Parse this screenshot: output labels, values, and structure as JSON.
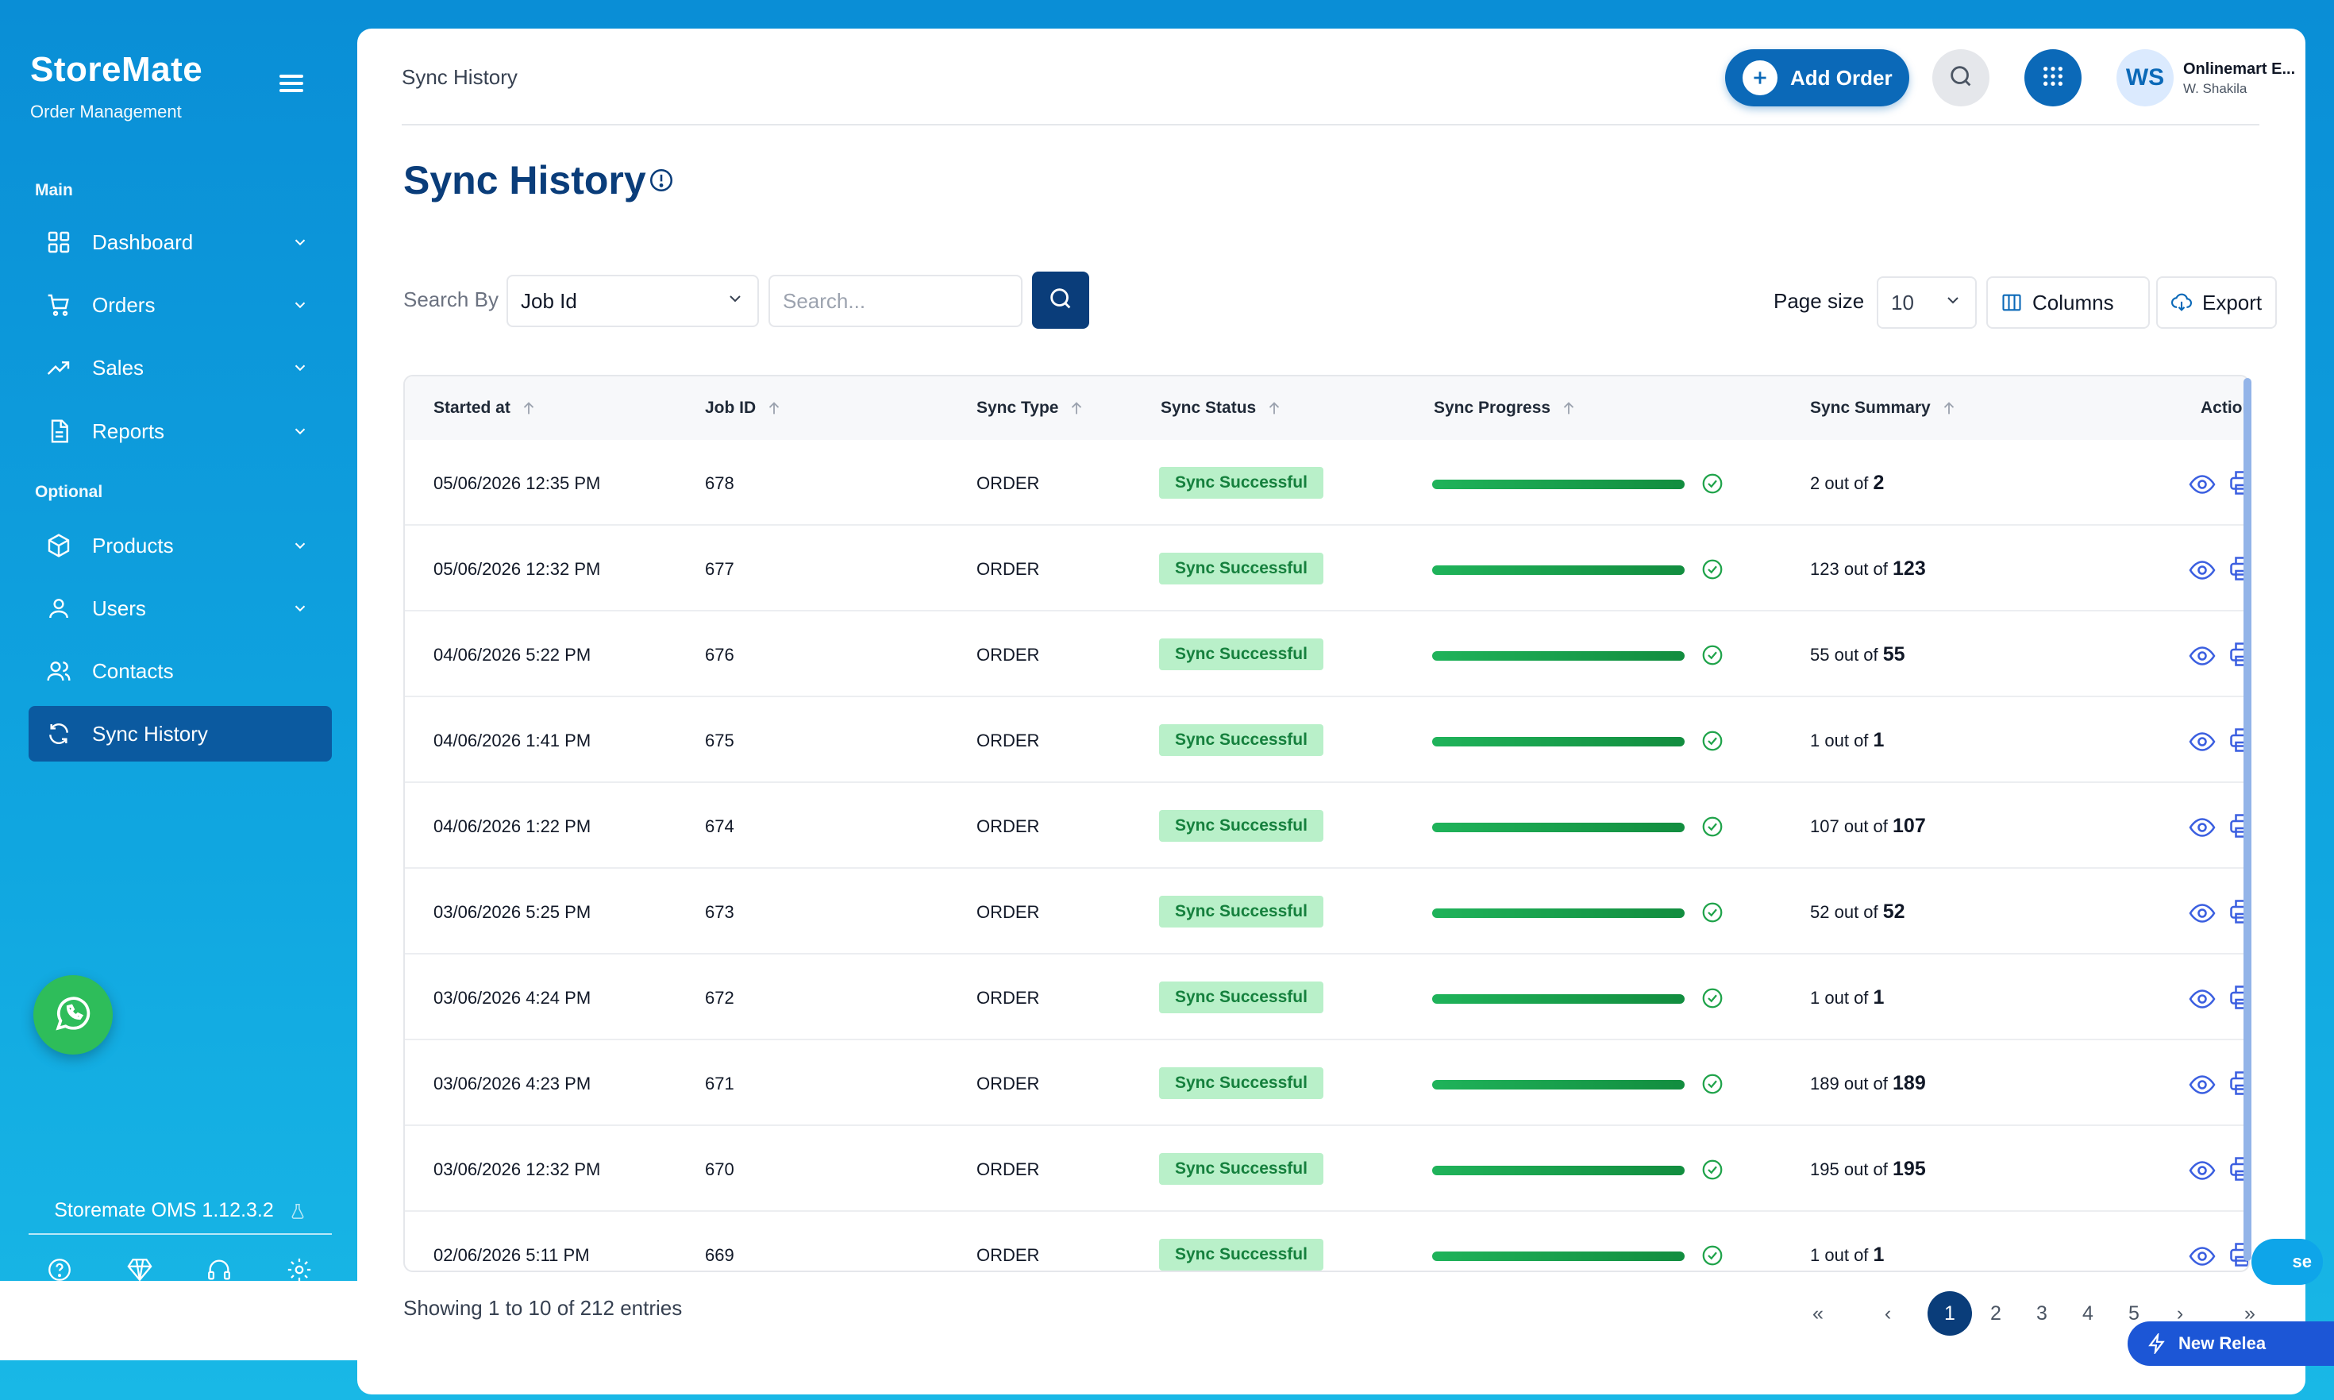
{
  "brand": {
    "name": "StoreMate",
    "subtitle": "Order Management"
  },
  "sidebar": {
    "section_main": "Main",
    "section_optional": "Optional",
    "items": [
      {
        "label": "Dashboard",
        "icon": "grid-icon",
        "has_chevron": true
      },
      {
        "label": "Orders",
        "icon": "cart-icon",
        "has_chevron": true
      },
      {
        "label": "Sales",
        "icon": "trend-up-icon",
        "has_chevron": true
      },
      {
        "label": "Reports",
        "icon": "document-icon",
        "has_chevron": true
      },
      {
        "label": "Products",
        "icon": "box-icon",
        "has_chevron": true
      },
      {
        "label": "Users",
        "icon": "user-icon",
        "has_chevron": true
      },
      {
        "label": "Contacts",
        "icon": "users-icon",
        "has_chevron": false
      },
      {
        "label": "Sync History",
        "icon": "sync-icon",
        "has_chevron": false,
        "active": true
      }
    ],
    "version": "Storemate OMS 1.12.3.2",
    "footer_icons": [
      "help-icon",
      "diamond-icon",
      "headset-icon",
      "settings-icon"
    ]
  },
  "header": {
    "breadcrumb": "Sync History",
    "add_order_label": "Add Order",
    "user_initials": "WS",
    "user_name": "Onlinemart E...",
    "user_sub": "W. Shakila"
  },
  "page": {
    "title": "Sync History",
    "search_by_label": "Search By",
    "search_by_value": "Job Id",
    "search_placeholder": "Search...",
    "page_size_label": "Page size",
    "page_size_value": "10",
    "columns_label": "Columns",
    "export_label": "Export"
  },
  "table": {
    "columns": [
      "Started at",
      "Job ID",
      "Sync Type",
      "Sync Status",
      "Sync Progress",
      "Sync Summary",
      "Action"
    ],
    "rows": [
      {
        "started": "05/06/2026 12:35 PM",
        "job_id": "678",
        "type": "ORDER",
        "status": "Sync Successful",
        "progress": 1.0,
        "done": "2",
        "total": "2"
      },
      {
        "started": "05/06/2026 12:32 PM",
        "job_id": "677",
        "type": "ORDER",
        "status": "Sync Successful",
        "progress": 1.0,
        "done": "123",
        "total": "123"
      },
      {
        "started": "04/06/2026 5:22 PM",
        "job_id": "676",
        "type": "ORDER",
        "status": "Sync Successful",
        "progress": 1.0,
        "done": "55",
        "total": "55"
      },
      {
        "started": "04/06/2026 1:41 PM",
        "job_id": "675",
        "type": "ORDER",
        "status": "Sync Successful",
        "progress": 1.0,
        "done": "1",
        "total": "1"
      },
      {
        "started": "04/06/2026 1:22 PM",
        "job_id": "674",
        "type": "ORDER",
        "status": "Sync Successful",
        "progress": 1.0,
        "done": "107",
        "total": "107"
      },
      {
        "started": "03/06/2026 5:25 PM",
        "job_id": "673",
        "type": "ORDER",
        "status": "Sync Successful",
        "progress": 1.0,
        "done": "52",
        "total": "52"
      },
      {
        "started": "03/06/2026 4:24 PM",
        "job_id": "672",
        "type": "ORDER",
        "status": "Sync Successful",
        "progress": 1.0,
        "done": "1",
        "total": "1"
      },
      {
        "started": "03/06/2026 4:23 PM",
        "job_id": "671",
        "type": "ORDER",
        "status": "Sync Successful",
        "progress": 1.0,
        "done": "189",
        "total": "189"
      },
      {
        "started": "03/06/2026 12:32 PM",
        "job_id": "670",
        "type": "ORDER",
        "status": "Sync Successful",
        "progress": 1.0,
        "done": "195",
        "total": "195"
      },
      {
        "started": "02/06/2026 5:11 PM",
        "job_id": "669",
        "type": "ORDER",
        "status": "Sync Successful",
        "progress": 1.0,
        "done": "1",
        "total": "1"
      }
    ],
    "out_of_text": "out of"
  },
  "footer": {
    "showing": "Showing 1 to 10 of 212  entries",
    "pages": [
      "1",
      "2",
      "3",
      "4",
      "5"
    ],
    "first": "«",
    "prev": "‹",
    "next": "›",
    "last": "»",
    "new_release": "New Relea",
    "close_partial": "se"
  },
  "colors": {
    "primary": "#0a3d7a",
    "accent": "#0b69b8",
    "success_bg": "#b9f0c9",
    "success_text": "#15803d",
    "progress": "#1fb35a"
  }
}
